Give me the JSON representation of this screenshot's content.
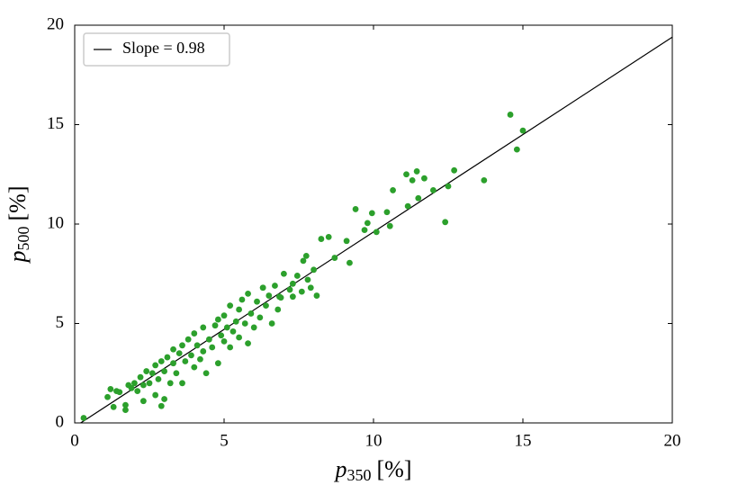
{
  "chart_data": {
    "type": "scatter",
    "xlabel": {
      "main": "p",
      "sub": "350",
      "unit": "[%]"
    },
    "ylabel": {
      "main": "p",
      "sub": "500",
      "unit": "[%]"
    },
    "xlim": [
      0,
      20
    ],
    "ylim": [
      0,
      20
    ],
    "xticks": [
      0,
      5,
      10,
      15,
      20
    ],
    "yticks": [
      0,
      5,
      10,
      15,
      20
    ],
    "legend": "upper left",
    "series": [
      {
        "name": "Slope = 0.98",
        "kind": "line",
        "color": "#000000",
        "x": [
          0.2,
          20
        ],
        "values": [
          0,
          19.4
        ]
      },
      {
        "kind": "points",
        "color": "#2ca02c",
        "x": [
          0.3,
          1.1,
          1.2,
          1.3,
          1.4,
          1.5,
          1.7,
          1.7,
          1.8,
          1.9,
          2.0,
          2.1,
          2.2,
          2.3,
          2.3,
          2.4,
          2.5,
          2.6,
          2.7,
          2.7,
          2.8,
          2.9,
          2.9,
          3.0,
          3.0,
          3.1,
          3.2,
          3.3,
          3.3,
          3.4,
          3.5,
          3.6,
          3.6,
          3.7,
          3.8,
          3.9,
          4.0,
          4.0,
          4.1,
          4.2,
          4.3,
          4.3,
          4.4,
          4.5,
          4.6,
          4.7,
          4.8,
          4.8,
          4.9,
          5.0,
          5.0,
          5.1,
          5.2,
          5.2,
          5.3,
          5.4,
          5.5,
          5.5,
          5.6,
          5.7,
          5.8,
          5.8,
          5.9,
          6.0,
          6.1,
          6.2,
          6.3,
          6.4,
          6.5,
          6.6,
          6.7,
          6.8,
          6.9,
          7.0,
          7.2,
          7.3,
          7.6,
          7.8,
          8.0,
          8.1,
          6.85,
          6.3,
          7.3,
          7.9,
          7.45,
          7.65,
          7.75,
          8.25,
          8.5,
          8.7,
          9.2,
          9.1,
          9.7,
          10.1,
          9.8,
          10.55,
          9.4,
          9.95,
          10.45,
          11.15,
          10.65,
          12.0,
          11.5,
          11.7,
          11.3,
          11.1,
          11.45,
          12.4,
          12.5,
          12.7,
          13.7,
          14.8,
          15.0,
          14.58
        ],
        "values": [
          0.25,
          1.3,
          1.7,
          0.8,
          1.6,
          1.55,
          0.9,
          0.65,
          1.9,
          1.75,
          2.0,
          1.6,
          2.3,
          1.1,
          1.9,
          2.6,
          2.0,
          2.5,
          1.4,
          2.9,
          2.2,
          3.1,
          0.85,
          2.6,
          1.2,
          3.3,
          2.0,
          3.0,
          3.7,
          2.5,
          3.5,
          3.9,
          2.0,
          3.1,
          4.2,
          3.4,
          2.8,
          4.5,
          3.9,
          3.2,
          4.8,
          3.6,
          2.5,
          4.2,
          3.8,
          4.9,
          3.0,
          5.2,
          4.4,
          4.1,
          5.4,
          4.8,
          3.8,
          5.9,
          4.6,
          5.1,
          5.7,
          4.3,
          6.2,
          5.0,
          4.0,
          6.5,
          5.5,
          4.8,
          6.1,
          5.3,
          6.8,
          5.9,
          6.4,
          5.0,
          6.9,
          5.7,
          6.3,
          7.5,
          6.7,
          7.0,
          6.6,
          7.2,
          7.7,
          6.4,
          6.35,
          6.8,
          6.35,
          6.8,
          7.4,
          8.15,
          8.4,
          9.25,
          9.35,
          8.3,
          8.05,
          9.15,
          9.7,
          9.6,
          10.05,
          9.9,
          10.75,
          10.55,
          10.6,
          10.9,
          11.7,
          11.7,
          11.3,
          12.3,
          12.2,
          12.5,
          12.65,
          10.1,
          11.9,
          12.7,
          12.2,
          13.75,
          14.7,
          15.5
        ]
      }
    ]
  }
}
